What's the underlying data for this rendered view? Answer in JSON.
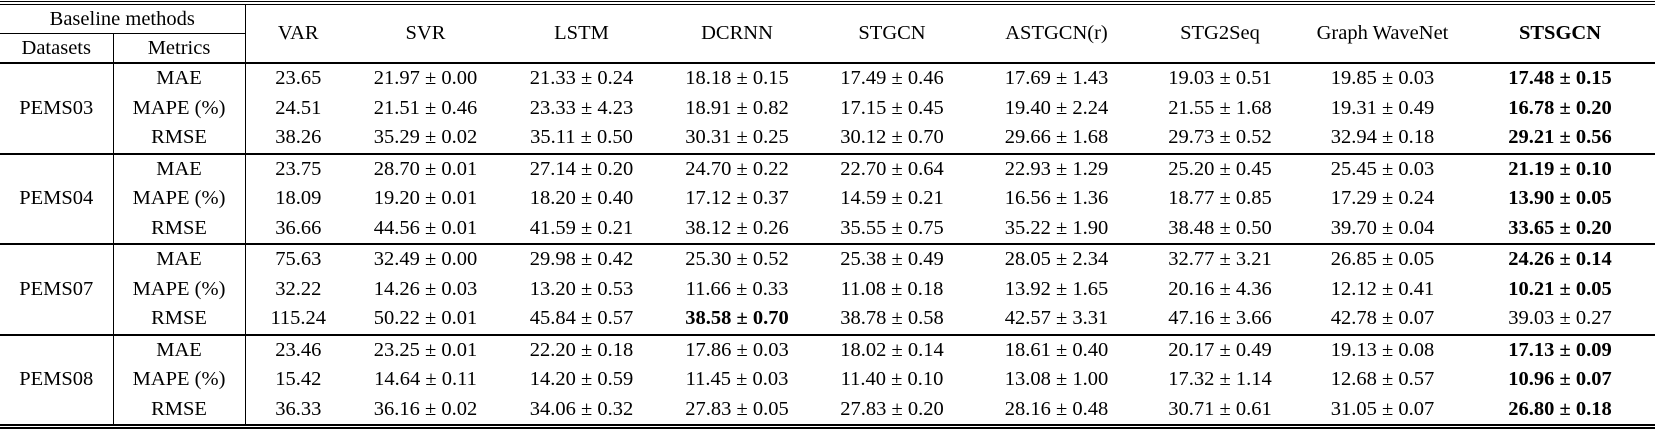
{
  "table": {
    "header": {
      "group_label": "Baseline methods",
      "datasets_label": "Datasets",
      "metrics_label": "Metrics",
      "methods": [
        "VAR",
        "SVR",
        "LSTM",
        "DCRNN",
        "STGCN",
        "ASTGCN(r)",
        "STG2Seq",
        "Graph WaveNet",
        "STSGCN"
      ],
      "bold_method_indices": [
        8
      ]
    },
    "groups": [
      {
        "dataset": "PEMS03",
        "rows": [
          {
            "metric": "MAE",
            "values": [
              "23.65",
              "21.97 ± 0.00",
              "21.33 ± 0.24",
              "18.18 ± 0.15",
              "17.49 ± 0.46",
              "17.69 ± 1.43",
              "19.03 ± 0.51",
              "19.85 ± 0.03",
              "17.48 ± 0.15"
            ],
            "bold_value_indices": [
              8
            ]
          },
          {
            "metric": "MAPE (%)",
            "values": [
              "24.51",
              "21.51 ± 0.46",
              "23.33 ± 4.23",
              "18.91 ± 0.82",
              "17.15 ± 0.45",
              "19.40 ± 2.24",
              "21.55 ± 1.68",
              "19.31 ± 0.49",
              "16.78 ± 0.20"
            ],
            "bold_value_indices": [
              8
            ]
          },
          {
            "metric": "RMSE",
            "values": [
              "38.26",
              "35.29 ± 0.02",
              "35.11 ± 0.50",
              "30.31 ± 0.25",
              "30.12 ± 0.70",
              "29.66 ± 1.68",
              "29.73 ± 0.52",
              "32.94 ± 0.18",
              "29.21 ± 0.56"
            ],
            "bold_value_indices": [
              8
            ]
          }
        ]
      },
      {
        "dataset": "PEMS04",
        "rows": [
          {
            "metric": "MAE",
            "values": [
              "23.75",
              "28.70 ± 0.01",
              "27.14 ± 0.20",
              "24.70 ± 0.22",
              "22.70 ± 0.64",
              "22.93 ± 1.29",
              "25.20 ± 0.45",
              "25.45 ± 0.03",
              "21.19 ± 0.10"
            ],
            "bold_value_indices": [
              8
            ]
          },
          {
            "metric": "MAPE (%)",
            "values": [
              "18.09",
              "19.20 ± 0.01",
              "18.20 ± 0.40",
              "17.12 ± 0.37",
              "14.59 ± 0.21",
              "16.56 ± 1.36",
              "18.77 ± 0.85",
              "17.29 ± 0.24",
              "13.90 ± 0.05"
            ],
            "bold_value_indices": [
              8
            ]
          },
          {
            "metric": "RMSE",
            "values": [
              "36.66",
              "44.56 ± 0.01",
              "41.59 ± 0.21",
              "38.12 ± 0.26",
              "35.55 ± 0.75",
              "35.22 ± 1.90",
              "38.48 ± 0.50",
              "39.70 ± 0.04",
              "33.65 ± 0.20"
            ],
            "bold_value_indices": [
              8
            ]
          }
        ]
      },
      {
        "dataset": "PEMS07",
        "rows": [
          {
            "metric": "MAE",
            "values": [
              "75.63",
              "32.49 ± 0.00",
              "29.98 ± 0.42",
              "25.30 ± 0.52",
              "25.38 ± 0.49",
              "28.05 ± 2.34",
              "32.77 ± 3.21",
              "26.85 ± 0.05",
              "24.26 ± 0.14"
            ],
            "bold_value_indices": [
              8
            ]
          },
          {
            "metric": "MAPE (%)",
            "values": [
              "32.22",
              "14.26 ± 0.03",
              "13.20 ± 0.53",
              "11.66 ± 0.33",
              "11.08 ± 0.18",
              "13.92 ± 1.65",
              "20.16 ± 4.36",
              "12.12 ± 0.41",
              "10.21 ± 0.05"
            ],
            "bold_value_indices": [
              8
            ]
          },
          {
            "metric": "RMSE",
            "values": [
              "115.24",
              "50.22 ± 0.01",
              "45.84 ± 0.57",
              "38.58 ± 0.70",
              "38.78 ± 0.58",
              "42.57 ± 3.31",
              "47.16 ± 3.66",
              "42.78 ± 0.07",
              "39.03 ± 0.27"
            ],
            "bold_value_indices": [
              3
            ]
          }
        ]
      },
      {
        "dataset": "PEMS08",
        "rows": [
          {
            "metric": "MAE",
            "values": [
              "23.46",
              "23.25 ± 0.01",
              "22.20 ± 0.18",
              "17.86 ± 0.03",
              "18.02 ± 0.14",
              "18.61 ± 0.40",
              "20.17 ± 0.49",
              "19.13 ± 0.08",
              "17.13 ± 0.09"
            ],
            "bold_value_indices": [
              8
            ]
          },
          {
            "metric": "MAPE (%)",
            "values": [
              "15.42",
              "14.64 ± 0.11",
              "14.20 ± 0.59",
              "11.45 ± 0.03",
              "11.40 ± 0.10",
              "13.08 ± 1.00",
              "17.32 ± 1.14",
              "12.68 ± 0.57",
              "10.96 ± 0.07"
            ],
            "bold_value_indices": [
              8
            ]
          },
          {
            "metric": "RMSE",
            "values": [
              "36.33",
              "36.16 ± 0.02",
              "34.06 ± 0.32",
              "27.83 ± 0.05",
              "27.83 ± 0.20",
              "28.16 ± 0.48",
              "30.71 ± 0.61",
              "31.05 ± 0.07",
              "26.80 ± 0.18"
            ],
            "bold_value_indices": [
              8
            ]
          }
        ]
      }
    ]
  },
  "colors": {
    "text": "#000000",
    "background": "#ffffff",
    "rule": "#000000"
  }
}
